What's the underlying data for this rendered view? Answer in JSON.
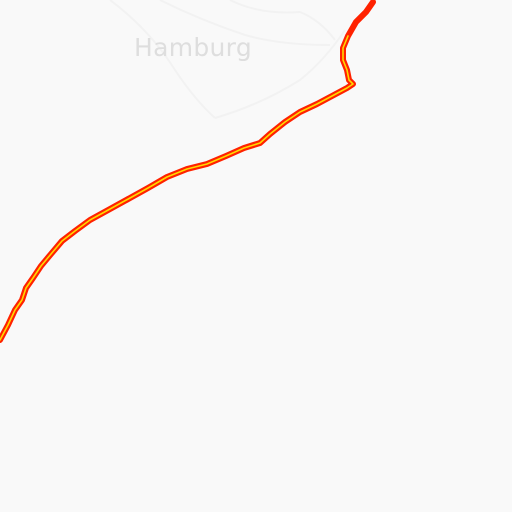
{
  "map": {
    "background_color": "#f9f9f9",
    "city_label": "Hamburg",
    "label_color": "#dedede",
    "street_color": "#f2f2f2",
    "route": {
      "outer_color": "#ff2200",
      "inner_color": "#ffd900"
    }
  }
}
